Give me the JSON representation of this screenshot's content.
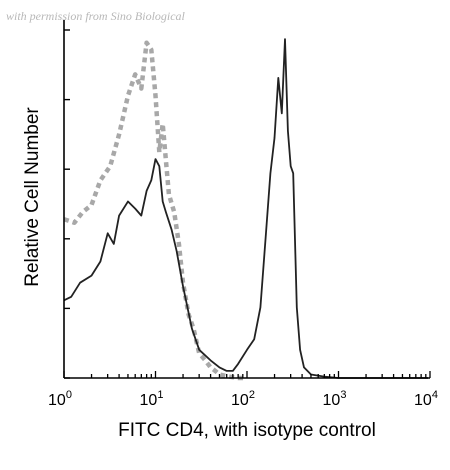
{
  "watermark": "with permission from Sino Biological",
  "chart_data": {
    "type": "line",
    "title": "",
    "xlabel": "FITC CD4, with isotype control",
    "ylabel": "Relative Cell Number",
    "x_scale": "log",
    "xlim": [
      1,
      10000
    ],
    "ylim": [
      0,
      100
    ],
    "x_ticks": [
      {
        "base": "10",
        "exp": "0"
      },
      {
        "base": "10",
        "exp": "1"
      },
      {
        "base": "10",
        "exp": "2"
      },
      {
        "base": "10",
        "exp": "3"
      },
      {
        "base": "10",
        "exp": "4"
      }
    ],
    "grid": false,
    "legend": "none",
    "series": [
      {
        "style": "dashed",
        "color": "#a8a8a8",
        "x": [
          1,
          1.3,
          1.6,
          2,
          2.5,
          3.2,
          4,
          5,
          6,
          7,
          8,
          9,
          10,
          11,
          12,
          14,
          16,
          18,
          20,
          23,
          26,
          30,
          35,
          40,
          45,
          50,
          60,
          80,
          100
        ],
        "y": [
          45,
          44,
          47,
          49,
          56,
          60,
          69,
          80,
          86,
          82,
          95,
          93,
          80,
          64,
          72,
          52,
          47,
          38,
          27,
          18,
          14,
          7,
          5,
          3,
          2,
          1,
          0.5,
          0,
          0
        ]
      },
      {
        "style": "solid",
        "color": "#222222",
        "x": [
          1,
          1.2,
          1.5,
          2,
          2.5,
          3,
          3.5,
          4,
          5,
          6,
          7,
          8,
          9,
          10,
          11,
          12,
          13,
          15,
          17,
          20,
          25,
          30,
          40,
          50,
          60,
          70,
          80,
          100,
          120,
          140,
          160,
          180,
          200,
          220,
          240,
          260,
          280,
          300,
          320,
          350,
          380,
          420,
          500,
          700,
          1000,
          10000
        ],
        "y": [
          22,
          23,
          27,
          29,
          33,
          41,
          38,
          46,
          50,
          48,
          46,
          53,
          56,
          62,
          60,
          50,
          47,
          42,
          36,
          26,
          14,
          8,
          5,
          3,
          2,
          2,
          4,
          8,
          11,
          20,
          40,
          58,
          68,
          85,
          75,
          96,
          70,
          60,
          58,
          20,
          8,
          3,
          1,
          0.4,
          0,
          0
        ]
      }
    ]
  }
}
